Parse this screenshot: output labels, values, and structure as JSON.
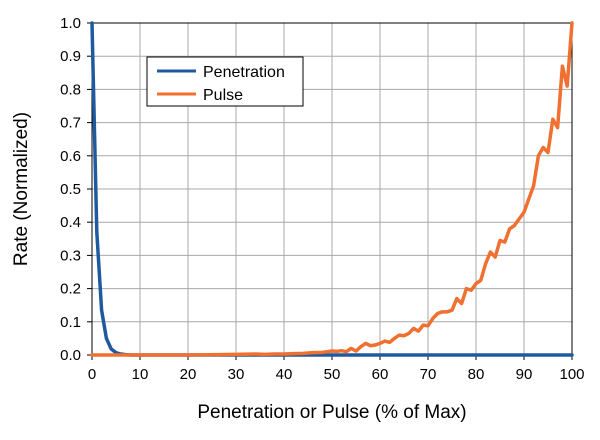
{
  "chart_data": {
    "type": "line",
    "title": "",
    "xlabel": "Penetration or Pulse (% of Max)",
    "ylabel": "Rate  (Normalized)",
    "xlim": [
      0,
      100
    ],
    "ylim": [
      0,
      1.0
    ],
    "grid": true,
    "legend_position": "top-left",
    "x_ticks": [
      "0",
      "10",
      "20",
      "30",
      "40",
      "50",
      "60",
      "70",
      "80",
      "90",
      "100"
    ],
    "y_ticks": [
      "0.0",
      "0.1",
      "0.2",
      "0.3",
      "0.4",
      "0.5",
      "0.6",
      "0.7",
      "0.8",
      "0.9",
      "1.0"
    ],
    "series": [
      {
        "name": "Penetration",
        "color": "#1f5aa0",
        "x": [
          0,
          1,
          2,
          3,
          4,
          5,
          6,
          7,
          8,
          9,
          10,
          15,
          20,
          30,
          40,
          50,
          60,
          70,
          80,
          90,
          100
        ],
        "y": [
          1.0,
          0.37,
          0.135,
          0.05,
          0.018,
          0.007,
          0.003,
          0.001,
          0.0,
          0.0,
          0.0,
          0.0,
          0.0,
          0.0,
          0.0,
          0.0,
          0.0,
          0.0,
          0.0,
          0.0,
          0.0
        ]
      },
      {
        "name": "Pulse",
        "color": "#f07030",
        "x": [
          0,
          10,
          20,
          30,
          34,
          36,
          38,
          40,
          42,
          44,
          46,
          48,
          49,
          50,
          51,
          52,
          53,
          54,
          55,
          56,
          57,
          58,
          59,
          60,
          61,
          62,
          63,
          64,
          65,
          66,
          67,
          68,
          69,
          70,
          71,
          72,
          73,
          74,
          75,
          76,
          77,
          78,
          79,
          80,
          81,
          82,
          83,
          84,
          85,
          86,
          87,
          88,
          89,
          90,
          91,
          92,
          93,
          94,
          95,
          96,
          97,
          98,
          99,
          100
        ],
        "y": [
          0.0,
          0.0,
          0.0,
          0.002,
          0.003,
          0.002,
          0.003,
          0.003,
          0.004,
          0.005,
          0.007,
          0.008,
          0.01,
          0.012,
          0.011,
          0.013,
          0.01,
          0.02,
          0.012,
          0.025,
          0.035,
          0.028,
          0.03,
          0.035,
          0.042,
          0.038,
          0.05,
          0.06,
          0.058,
          0.065,
          0.08,
          0.072,
          0.09,
          0.088,
          0.11,
          0.125,
          0.13,
          0.13,
          0.135,
          0.17,
          0.155,
          0.2,
          0.195,
          0.215,
          0.225,
          0.275,
          0.31,
          0.295,
          0.345,
          0.34,
          0.38,
          0.39,
          0.41,
          0.43,
          0.47,
          0.51,
          0.6,
          0.625,
          0.61,
          0.71,
          0.685,
          0.87,
          0.81,
          1.0
        ]
      }
    ]
  }
}
